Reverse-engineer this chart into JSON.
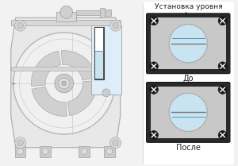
{
  "title": "Установка уровня\nзатворной жидкости",
  "label_before": "До",
  "label_after": "После",
  "bg_color": "#f2f2f2",
  "right_bg": "#ffffff",
  "panel_bg": "#c8c8c8",
  "circle_fill": "#e0e0e0",
  "water_color": "#c8e4f0",
  "title_fontsize": 6.5,
  "label_fontsize": 7,
  "device_bg": "#e8e8e8",
  "device_line": "#aaaaaa"
}
